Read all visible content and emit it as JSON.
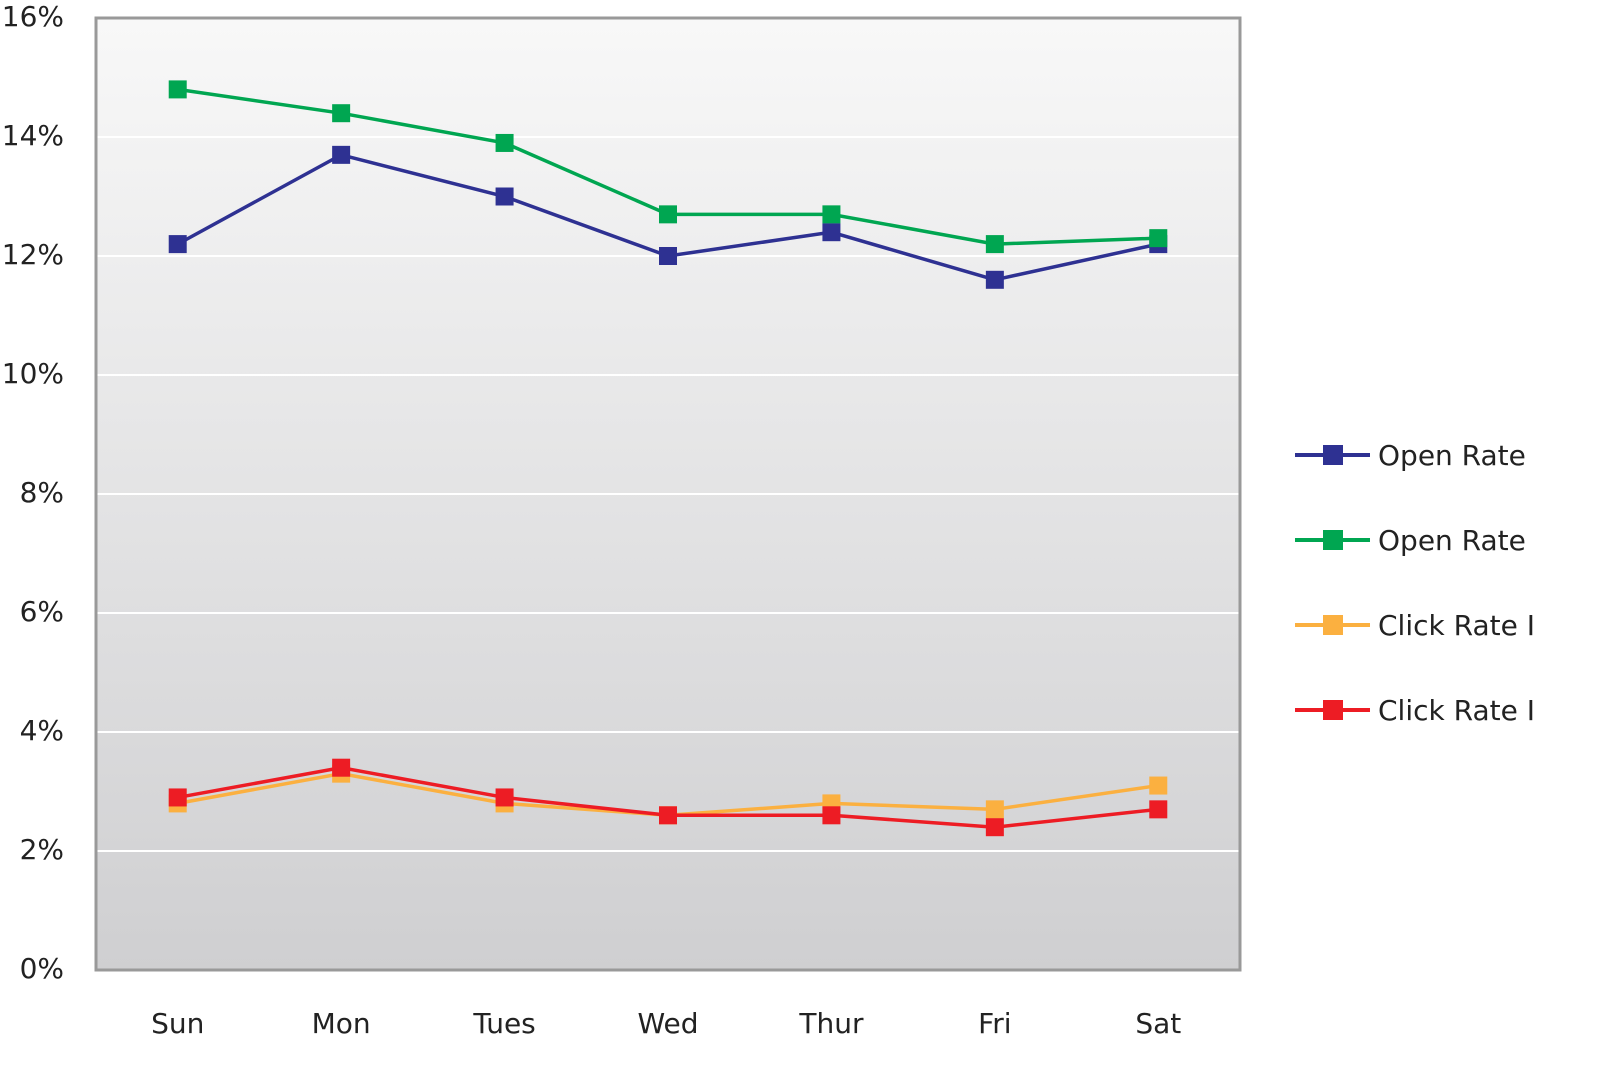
{
  "chart_data": {
    "type": "line",
    "categories": [
      "Sun",
      "Mon",
      "Tues",
      "Wed",
      "Thur",
      "Fri",
      "Sat"
    ],
    "series": [
      {
        "name": "Open Rate",
        "color": "#2e3192",
        "values": [
          12.2,
          13.7,
          13.0,
          12.0,
          12.4,
          11.6,
          12.2
        ]
      },
      {
        "name": "Open Rate",
        "color": "#00a651",
        "values": [
          14.8,
          14.4,
          13.9,
          12.7,
          12.7,
          12.2,
          12.3
        ]
      },
      {
        "name": "Click Rate I",
        "color": "#fbb040",
        "values": [
          2.8,
          3.3,
          2.8,
          2.6,
          2.8,
          2.7,
          3.1
        ]
      },
      {
        "name": "Click Rate I",
        "color": "#ed1c24",
        "values": [
          2.9,
          3.4,
          2.9,
          2.6,
          2.6,
          2.4,
          2.7
        ]
      }
    ],
    "ylim": [
      0,
      16
    ],
    "yticks": [
      {
        "value": 0,
        "label": "0%"
      },
      {
        "value": 2,
        "label": "2%"
      },
      {
        "value": 4,
        "label": "4%"
      },
      {
        "value": 6,
        "label": "6%"
      },
      {
        "value": 8,
        "label": "8%"
      },
      {
        "value": 10,
        "label": "10%"
      },
      {
        "value": 12,
        "label": "12%"
      },
      {
        "value": 14,
        "label": "14%"
      },
      {
        "value": 16,
        "label": "16%"
      }
    ],
    "grid": true,
    "legend": "right"
  }
}
